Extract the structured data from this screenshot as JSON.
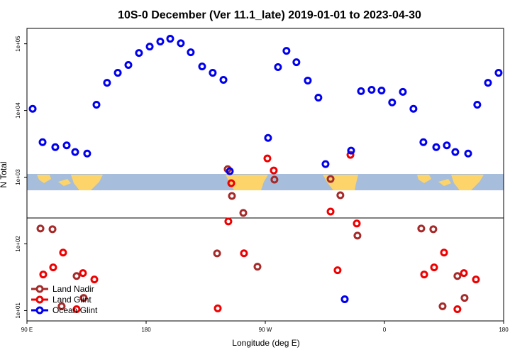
{
  "chart_data": {
    "type": "scatter",
    "title": "10S-0 December (Ver 11.1_late)   2019-01-01 to 2023-04-30",
    "xlabel": "Longitude (deg E)",
    "ylabel": "N Total",
    "log_y": true,
    "legend": "bottom-left",
    "xlim": [
      90,
      450
    ],
    "ylim": [
      7,
      170000
    ],
    "xticks": [
      {
        "value": 90,
        "label": "90 E"
      },
      180,
      {
        "value": 270,
        "label": "90 W"
      },
      {
        "value": 360,
        "label": "0"
      },
      {
        "value": 450,
        "label": "180"
      },
      {
        "value": 450,
        "label": "180"
      }
    ],
    "yticks": [
      {
        "value": 10,
        "label": "1e+01"
      },
      {
        "value": 100,
        "label": "1e+02"
      },
      {
        "value": 1000,
        "label": "1e+03"
      },
      {
        "value": 10000,
        "label": "1e+04"
      },
      {
        "value": 100000,
        "label": "1e+05"
      }
    ],
    "series": [
      {
        "name": "Land Nadir",
        "color": "#a52a2a",
        "x": [
          100.2,
          109.3,
          116.2,
          127.5,
          132.8,
          241.6,
          244.8,
          253.4,
          233.6,
          264.1,
          276.9,
          319.3,
          326.7,
          339.6,
          387.8,
          396.9,
          403.9,
          415.1,
          420.5
        ],
        "values": [
          170,
          166,
          11.6,
          33,
          15.5,
          1320,
          523,
          291,
          72,
          45.5,
          918,
          940,
          536,
          133,
          170,
          166,
          11.6,
          33,
          15.5
        ]
      },
      {
        "name": "Land Glint",
        "color": "#ee0000",
        "x": [
          102.3,
          109.8,
          117.3,
          127.5,
          132.3,
          140.9,
          234.1,
          242.1,
          244.3,
          253.9,
          271.6,
          276.4,
          319.3,
          324.6,
          334.3,
          339.1,
          390,
          397.5,
          405,
          415.1,
          420,
          429.1
        ],
        "values": [
          34.8,
          44.4,
          74,
          10.5,
          36.5,
          29.3,
          10.8,
          217,
          813,
          72.3,
          1910,
          1260,
          305,
          40.3,
          2160,
          202,
          34.8,
          44.4,
          74,
          10.5,
          36.5,
          29.3
        ]
      },
      {
        "name": "Ocean Glint",
        "color": "#0000ee",
        "x": [
          94.3,
          101.8,
          111.4,
          120,
          126.4,
          135.5,
          142.5,
          150.5,
          158.6,
          166.6,
          174.6,
          182.7,
          190.7,
          198.2,
          206.2,
          213.7,
          222.3,
          230.3,
          238.4,
          243.2,
          272.1,
          279.6,
          286,
          293.5,
          302.1,
          310.1,
          315.5,
          334.8,
          330,
          342.3,
          350.3,
          357.8,
          365.8,
          373.9,
          381.9,
          389.4,
          399.1,
          407.1,
          413.5,
          423.2,
          430.1,
          438.2,
          446.2
        ],
        "values": [
          10600,
          3350,
          2820,
          3000,
          2380,
          2260,
          12200,
          26000,
          36700,
          48100,
          72800,
          90800,
          108000,
          119000,
          102000,
          74600,
          45700,
          36700,
          28800,
          1230,
          3880,
          44700,
          78300,
          52900,
          28100,
          15600,
          1570,
          2500,
          14.8,
          19500,
          20400,
          19900,
          13200,
          19000,
          10600,
          3350,
          2820,
          3000,
          2380,
          2260,
          12200,
          26000,
          36700
        ]
      }
    ]
  }
}
